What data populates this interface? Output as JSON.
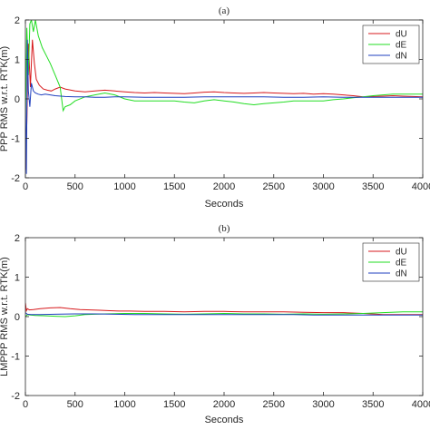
{
  "chart_data": [
    {
      "type": "line",
      "title": "(a)",
      "xlabel": "Seconds",
      "ylabel": "PPP RMS w.r.t. RTK(m)",
      "xlim": [
        0,
        4000
      ],
      "ylim": [
        -2,
        2
      ],
      "xticks": [
        0,
        500,
        1000,
        1500,
        2000,
        2500,
        3000,
        3500,
        4000
      ],
      "yticks": [
        -2,
        -1,
        0,
        1,
        2
      ],
      "grid": false,
      "legend_position": "top-right",
      "legend": [
        "dU",
        "dE",
        "dN"
      ],
      "series": [
        {
          "name": "dU",
          "color": "#d7191c",
          "x": [
            0,
            15,
            30,
            50,
            70,
            90,
            110,
            140,
            180,
            220,
            260,
            300,
            350,
            400,
            500,
            600,
            700,
            800,
            900,
            1000,
            1100,
            1200,
            1300,
            1400,
            1500,
            1600,
            1700,
            1800,
            1900,
            2000,
            2100,
            2200,
            2300,
            2400,
            2500,
            2600,
            2700,
            2800,
            2900,
            3000,
            3100,
            3200,
            3300,
            3400,
            3500,
            3600,
            3700,
            3800,
            3900,
            4000
          ],
          "y": [
            -1.8,
            -0.6,
            1.4,
            0.3,
            1.5,
            0.9,
            0.5,
            0.35,
            0.25,
            0.22,
            0.2,
            0.25,
            0.3,
            0.25,
            0.2,
            0.18,
            0.2,
            0.22,
            0.2,
            0.18,
            0.16,
            0.15,
            0.16,
            0.15,
            0.14,
            0.13,
            0.15,
            0.17,
            0.18,
            0.16,
            0.15,
            0.14,
            0.15,
            0.16,
            0.15,
            0.14,
            0.13,
            0.14,
            0.12,
            0.13,
            0.12,
            0.1,
            0.08,
            0.05,
            0.06,
            0.07,
            0.08,
            0.07,
            0.06,
            0.05
          ]
        },
        {
          "name": "dE",
          "color": "#22dd22",
          "x": [
            0,
            15,
            30,
            45,
            60,
            80,
            100,
            130,
            170,
            210,
            250,
            300,
            350,
            380,
            400,
            450,
            500,
            600,
            700,
            800,
            900,
            1000,
            1100,
            1200,
            1300,
            1400,
            1500,
            1600,
            1700,
            1800,
            1900,
            2000,
            2100,
            2200,
            2300,
            2400,
            2500,
            2600,
            2700,
            2800,
            2900,
            3000,
            3100,
            3200,
            3300,
            3400,
            3500,
            3600,
            3700,
            3800,
            3900,
            4000
          ],
          "y": [
            -0.5,
            1.8,
            0.6,
            1.9,
            2.0,
            1.7,
            2.0,
            1.6,
            1.3,
            1.1,
            0.9,
            0.6,
            0.3,
            -0.3,
            -0.2,
            -0.15,
            -0.05,
            0.05,
            0.1,
            0.15,
            0.1,
            0.0,
            -0.05,
            -0.05,
            -0.05,
            -0.05,
            -0.05,
            -0.08,
            -0.1,
            -0.05,
            -0.02,
            -0.05,
            -0.08,
            -0.12,
            -0.15,
            -0.12,
            -0.1,
            -0.08,
            -0.05,
            -0.05,
            -0.05,
            -0.05,
            -0.02,
            0.0,
            0.03,
            0.05,
            0.08,
            0.1,
            0.12,
            0.12,
            0.12,
            0.12
          ]
        },
        {
          "name": "dN",
          "color": "#1f3fbf",
          "x": [
            0,
            10,
            20,
            30,
            45,
            60,
            80,
            100,
            130,
            160,
            200,
            250,
            300,
            400,
            500,
            600,
            700,
            800,
            900,
            1000,
            1200,
            1400,
            1600,
            1800,
            2000,
            2200,
            2400,
            2600,
            2800,
            3000,
            3200,
            3400,
            3600,
            3800,
            4000
          ],
          "y": [
            0.0,
            -1.9,
            1.5,
            0.2,
            -0.2,
            0.4,
            0.2,
            0.15,
            0.12,
            0.1,
            0.12,
            0.1,
            0.08,
            0.06,
            0.05,
            0.05,
            0.04,
            0.04,
            0.05,
            0.05,
            0.04,
            0.04,
            0.04,
            0.05,
            0.05,
            0.05,
            0.05,
            0.04,
            0.04,
            0.05,
            0.04,
            0.04,
            0.04,
            0.04,
            0.04
          ]
        }
      ]
    },
    {
      "type": "line",
      "title": "(b)",
      "xlabel": "Seconds",
      "ylabel": "LMPPP RMS w.r.t. RTK(m)",
      "xlim": [
        0,
        4000
      ],
      "ylim": [
        -2,
        2
      ],
      "xticks": [
        0,
        500,
        1000,
        1500,
        2000,
        2500,
        3000,
        3500,
        4000
      ],
      "yticks": [
        -2,
        -1,
        0,
        1,
        2
      ],
      "grid": false,
      "legend_position": "top-right",
      "legend": [
        "dU",
        "dE",
        "dN"
      ],
      "series": [
        {
          "name": "dU",
          "color": "#d7191c",
          "x": [
            0,
            10,
            20,
            40,
            80,
            150,
            250,
            350,
            450,
            550,
            650,
            750,
            850,
            950,
            1050,
            1200,
            1400,
            1600,
            1800,
            2000,
            2200,
            2400,
            2600,
            2800,
            3000,
            3200,
            3400,
            3600,
            3800,
            4000
          ],
          "y": [
            0.35,
            0.15,
            0.2,
            0.17,
            0.18,
            0.2,
            0.22,
            0.23,
            0.2,
            0.18,
            0.17,
            0.16,
            0.15,
            0.14,
            0.14,
            0.13,
            0.13,
            0.12,
            0.13,
            0.13,
            0.12,
            0.12,
            0.12,
            0.11,
            0.1,
            0.1,
            0.08,
            0.05,
            0.05,
            0.05
          ]
        },
        {
          "name": "dE",
          "color": "#22dd22",
          "x": [
            0,
            20,
            50,
            100,
            200,
            300,
            400,
            500,
            600,
            800,
            1000,
            1200,
            1400,
            1600,
            1800,
            2000,
            2200,
            2400,
            2600,
            2800,
            3000,
            3200,
            3400,
            3600,
            3800,
            4000
          ],
          "y": [
            0.0,
            0.05,
            0.04,
            0.03,
            0.02,
            0.01,
            0.0,
            0.02,
            0.05,
            0.07,
            0.08,
            0.08,
            0.07,
            0.06,
            0.07,
            0.08,
            0.07,
            0.07,
            0.06,
            0.07,
            0.06,
            0.07,
            0.08,
            0.1,
            0.12,
            0.12
          ]
        },
        {
          "name": "dN",
          "color": "#1f3fbf",
          "x": [
            0,
            20,
            60,
            150,
            300,
            500,
            700,
            900,
            1100,
            1300,
            1500,
            1700,
            1900,
            2100,
            2300,
            2500,
            2700,
            2900,
            3100,
            3300,
            3500,
            3700,
            3900,
            4000
          ],
          "y": [
            0.1,
            0.06,
            0.05,
            0.05,
            0.06,
            0.07,
            0.07,
            0.06,
            0.05,
            0.05,
            0.05,
            0.05,
            0.05,
            0.05,
            0.05,
            0.05,
            0.05,
            0.04,
            0.04,
            0.04,
            0.04,
            0.04,
            0.04,
            0.04
          ]
        }
      ]
    }
  ]
}
